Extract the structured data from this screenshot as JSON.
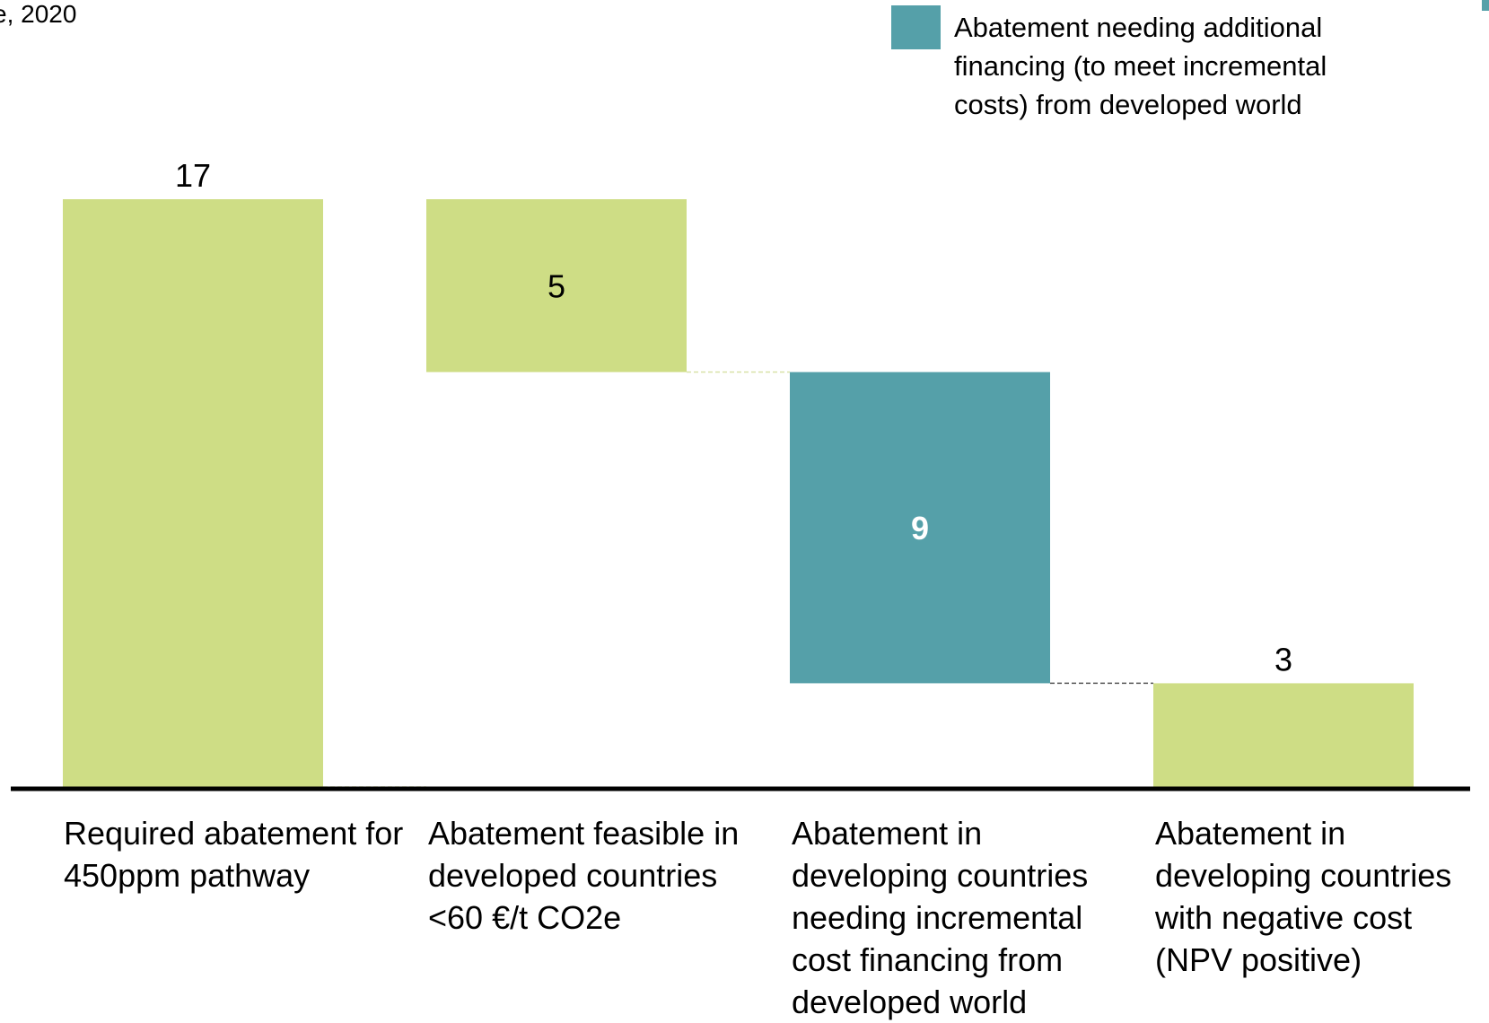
{
  "subtitle": "e, 2020",
  "legend": {
    "label": "Abatement needing additional financing (to meet incremental costs) from developed world",
    "color": "#55a0a9"
  },
  "colors": {
    "green": "#cedd85",
    "teal": "#55a0a9",
    "baseline": "#000000"
  },
  "chart_data": {
    "type": "bar",
    "subtype": "waterfall",
    "categories": [
      "Required abatement for 450ppm pathway",
      "Abatement feasible in developed countries <60 €/t CO2e",
      "Abatement in developing countries needing incremental cost financing from developed world",
      "Abatement in developing countries with negative cost (NPV positive)"
    ],
    "values": [
      17,
      5,
      9,
      3
    ],
    "value_labels": [
      "17",
      "5",
      "9",
      "3"
    ],
    "bar_start": [
      0,
      12,
      3,
      0
    ],
    "bar_end": [
      17,
      17,
      12,
      3
    ],
    "bar_colors": [
      "green",
      "green",
      "teal",
      "green"
    ],
    "ylim": [
      0,
      17
    ],
    "grid": false,
    "legend_position": "top-right"
  }
}
